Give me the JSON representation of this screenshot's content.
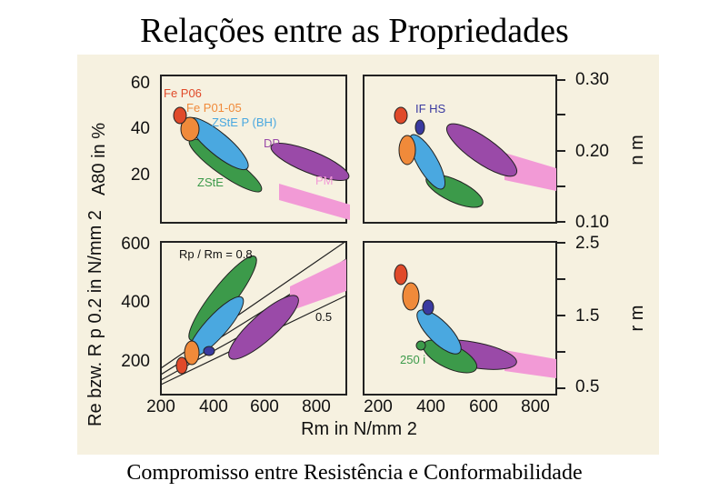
{
  "title": "Relações entre as Propriedades",
  "caption": "Compromisso entre Resistência e Conformabilidade",
  "colors": {
    "Fe P06": "#e04a2a",
    "Fe P01-05": "#f08a3a",
    "ZStE P (BH)": "#4aa8e0",
    "DP": "#9a4aa8",
    "ZStE": "#3c9a4a",
    "PM": "#f29ad6",
    "IF HS": "#3a3aa0",
    "250 i": "#3c9a4a"
  },
  "chart_data": [
    {
      "id": "A80-vs-Rm",
      "type": "scatter",
      "ylabel": "A80 in %",
      "yticks": [
        "60",
        "40",
        "20"
      ],
      "ylim": [
        0,
        60
      ],
      "xlim": [
        200,
        900
      ],
      "labels": {
        "fe_p06": "Fe P06",
        "fe_p01": "Fe P01-05",
        "zste_p": "ZStE P (BH)",
        "dp": "DP",
        "zste": "ZStE",
        "pm": "PM"
      },
      "series": [
        {
          "name": "Fe P06",
          "x": [
            290,
            320
          ],
          "y": [
            42,
            36
          ]
        },
        {
          "name": "Fe P01-05",
          "x": [
            300,
            345
          ],
          "y": [
            40,
            34
          ]
        },
        {
          "name": "ZStE P (BH)",
          "x": [
            340,
            470
          ],
          "y": [
            36,
            25
          ]
        },
        {
          "name": "DP",
          "x": [
            480,
            740
          ],
          "y": [
            30,
            17
          ]
        },
        {
          "name": "ZStE",
          "x": [
            340,
            510
          ],
          "y": [
            30,
            18
          ]
        },
        {
          "name": "PM",
          "x": [
            690,
            900
          ],
          "y": [
            17,
            5
          ]
        }
      ]
    },
    {
      "id": "n-vs-Rm",
      "type": "scatter",
      "ylabel": "n m",
      "yticks": [
        "0.30",
        "0.20",
        "0.10"
      ],
      "ylim": [
        0.1,
        0.3
      ],
      "labels": {
        "if_hs": "IF HS"
      },
      "series": [
        {
          "name": "Fe P06",
          "x": [
            320
          ],
          "y": [
            0.25
          ]
        },
        {
          "name": "Fe P01-05",
          "x": [
            330
          ],
          "y": [
            0.23
          ]
        },
        {
          "name": "IF HS",
          "x": [
            360
          ],
          "y": [
            0.235
          ]
        },
        {
          "name": "ZStE P (BH)",
          "x": [
            340,
            430
          ],
          "y": [
            0.23,
            0.18
          ]
        },
        {
          "name": "DP",
          "x": [
            460,
            650
          ],
          "y": [
            0.22,
            0.18
          ]
        },
        {
          "name": "ZStE",
          "x": [
            400,
            560
          ],
          "y": [
            0.19,
            0.15
          ]
        },
        {
          "name": "PM",
          "x": [
            640,
            800
          ],
          "y": [
            0.17,
            0.13
          ]
        }
      ]
    },
    {
      "id": "Rp-vs-Rm",
      "type": "scatter",
      "ylabel": "Re bzw. R p 0.2 in N/mm 2",
      "yticks": [
        "600",
        "400",
        "200"
      ],
      "ylim": [
        100,
        600
      ],
      "xlabel": "Rm in N/mm 2",
      "xticks": [
        "200",
        "400",
        "600",
        "800"
      ],
      "xlim": [
        200,
        900
      ],
      "annotations": [
        "Rp / Rm = 0.8",
        "0.5"
      ],
      "series": [
        {
          "name": "Fe P06",
          "x": [
            280
          ],
          "y": [
            190
          ]
        },
        {
          "name": "Fe P01-05",
          "x": [
            320
          ],
          "y": [
            240
          ]
        },
        {
          "name": "IF HS",
          "x": [
            390
          ],
          "y": [
            235
          ]
        },
        {
          "name": "ZStE P (BH)",
          "x": [
            330,
            500
          ],
          "y": [
            220,
            380
          ]
        },
        {
          "name": "ZStE",
          "x": [
            360,
            560
          ],
          "y": [
            260,
            490
          ]
        },
        {
          "name": "DP",
          "x": [
            460,
            740
          ],
          "y": [
            260,
            400
          ]
        },
        {
          "name": "PM",
          "x": [
            700,
            900
          ],
          "y": [
            390,
            520
          ]
        }
      ]
    },
    {
      "id": "r-vs-Rm",
      "type": "scatter",
      "ylabel": "r m",
      "yticks": [
        "2.5",
        "1.5",
        "0.5"
      ],
      "ylim": [
        0.5,
        2.5
      ],
      "xticks": [
        "200",
        "400",
        "600",
        "800"
      ],
      "xlim": [
        200,
        900
      ],
      "annotations": [
        "250 i"
      ],
      "series": [
        {
          "name": "Fe P06",
          "x": [
            300
          ],
          "y": [
            2.3
          ]
        },
        {
          "name": "Fe P01-05",
          "x": [
            320
          ],
          "y": [
            1.9
          ]
        },
        {
          "name": "IF HS",
          "x": [
            350
          ],
          "y": [
            1.7
          ]
        },
        {
          "name": "ZStE P (BH)",
          "x": [
            400,
            470
          ],
          "y": [
            1.5,
            1.1
          ]
        },
        {
          "name": "ZStE",
          "x": [
            360,
            600
          ],
          "y": [
            1.2,
            0.9
          ]
        },
        {
          "name": "DP",
          "x": [
            460,
            750
          ],
          "y": [
            1.1,
            0.75
          ]
        },
        {
          "name": "250 i",
          "x": [
            360
          ],
          "y": [
            1.1
          ]
        },
        {
          "name": "PM",
          "x": [
            700,
            900
          ],
          "y": [
            0.8,
            0.55
          ]
        }
      ]
    }
  ]
}
